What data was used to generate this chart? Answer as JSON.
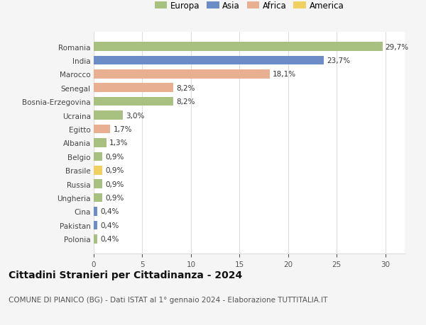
{
  "countries": [
    "Romania",
    "India",
    "Marocco",
    "Senegal",
    "Bosnia-Erzegovina",
    "Ucraina",
    "Egitto",
    "Albania",
    "Belgio",
    "Brasile",
    "Russia",
    "Ungheria",
    "Cina",
    "Pakistan",
    "Polonia"
  ],
  "values": [
    29.7,
    23.7,
    18.1,
    8.2,
    8.2,
    3.0,
    1.7,
    1.3,
    0.9,
    0.9,
    0.9,
    0.9,
    0.4,
    0.4,
    0.4
  ],
  "labels": [
    "29,7%",
    "23,7%",
    "18,1%",
    "8,2%",
    "8,2%",
    "3,0%",
    "1,7%",
    "1,3%",
    "0,9%",
    "0,9%",
    "0,9%",
    "0,9%",
    "0,4%",
    "0,4%",
    "0,4%"
  ],
  "continents": [
    "Europa",
    "Asia",
    "Africa",
    "Africa",
    "Europa",
    "Europa",
    "Africa",
    "Europa",
    "Europa",
    "America",
    "Europa",
    "Europa",
    "Asia",
    "Asia",
    "Europa"
  ],
  "continent_colors": {
    "Europa": "#a8c080",
    "Asia": "#6b8cc7",
    "Africa": "#e8b090",
    "America": "#f0d060"
  },
  "legend_order": [
    "Europa",
    "Asia",
    "Africa",
    "America"
  ],
  "title": "Cittadini Stranieri per Cittadinanza - 2024",
  "subtitle": "COMUNE DI PIANICO (BG) - Dati ISTAT al 1° gennaio 2024 - Elaborazione TUTTITALIA.IT",
  "xlim": [
    0,
    32
  ],
  "xticks": [
    0,
    5,
    10,
    15,
    20,
    25,
    30
  ],
  "bg_color": "#f5f5f5",
  "plot_bg_color": "#ffffff",
  "grid_color": "#dddddd",
  "title_fontsize": 10,
  "subtitle_fontsize": 7.5,
  "label_fontsize": 7.5,
  "tick_fontsize": 7.5,
  "legend_fontsize": 8.5,
  "bar_height": 0.65
}
